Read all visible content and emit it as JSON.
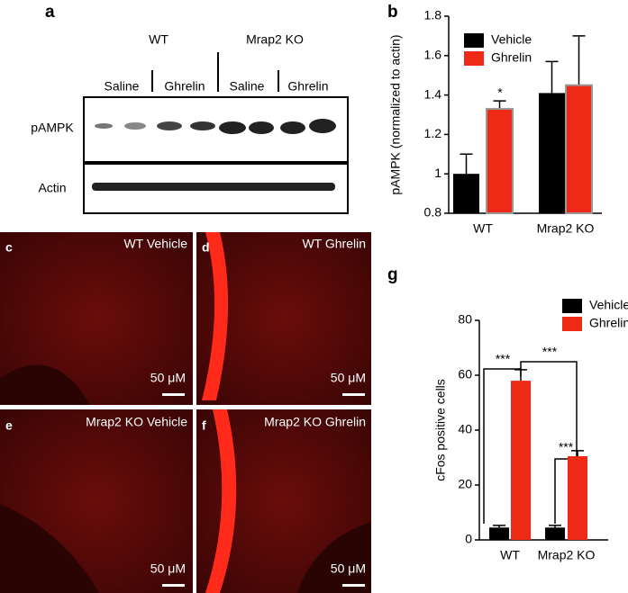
{
  "panel_labels": [
    "a",
    "b",
    "c",
    "d",
    "e",
    "f",
    "g"
  ],
  "blot": {
    "groups": [
      "WT",
      "Mrap2 KO"
    ],
    "lanes": [
      "Saline",
      "Ghrelin",
      "Saline",
      "Ghrelin"
    ],
    "rows": [
      "pAMPK",
      "Actin"
    ]
  },
  "images": [
    {
      "label": "WT Vehicle",
      "scale": "50 μM"
    },
    {
      "label": "WT Ghrelin",
      "scale": "50 μM"
    },
    {
      "label": "Mrap2 KO Vehicle",
      "scale": "50 μM"
    },
    {
      "label": "Mrap2 KO Ghrelin",
      "scale": "50 μM"
    }
  ],
  "chart_data": [
    {
      "type": "bar",
      "y_label": "pAMPK (normalized to actin)",
      "categories": [
        "WT",
        "Mrap2 KO"
      ],
      "series": [
        {
          "name": "Vehicle",
          "color": "#000000",
          "values": [
            1.0,
            1.41
          ],
          "errors": [
            0.1,
            0.16
          ]
        },
        {
          "name": "Ghrelin",
          "color": "#ee2a16",
          "values": [
            1.33,
            1.45
          ],
          "errors": [
            0.04,
            0.25
          ]
        }
      ],
      "ylim": [
        0.8,
        1.8
      ],
      "yticks": [
        0.8,
        1.0,
        1.2,
        1.4,
        1.6,
        1.8
      ],
      "annotations": [
        "*"
      ]
    },
    {
      "type": "bar",
      "y_label": "cFos positive cells",
      "categories": [
        "WT",
        "Mrap2 KO"
      ],
      "series": [
        {
          "name": "Vehicle",
          "color": "#000000",
          "values": [
            4.5,
            4.5
          ],
          "errors": [
            0.8,
            0.8
          ]
        },
        {
          "name": "Ghrelin",
          "color": "#ee2a16",
          "values": [
            58,
            30.5
          ],
          "errors": [
            4,
            2
          ]
        }
      ],
      "ylim": [
        0,
        80
      ],
      "yticks": [
        0,
        20,
        40,
        60,
        80
      ],
      "annotations": [
        "***",
        "***",
        "***"
      ]
    }
  ]
}
